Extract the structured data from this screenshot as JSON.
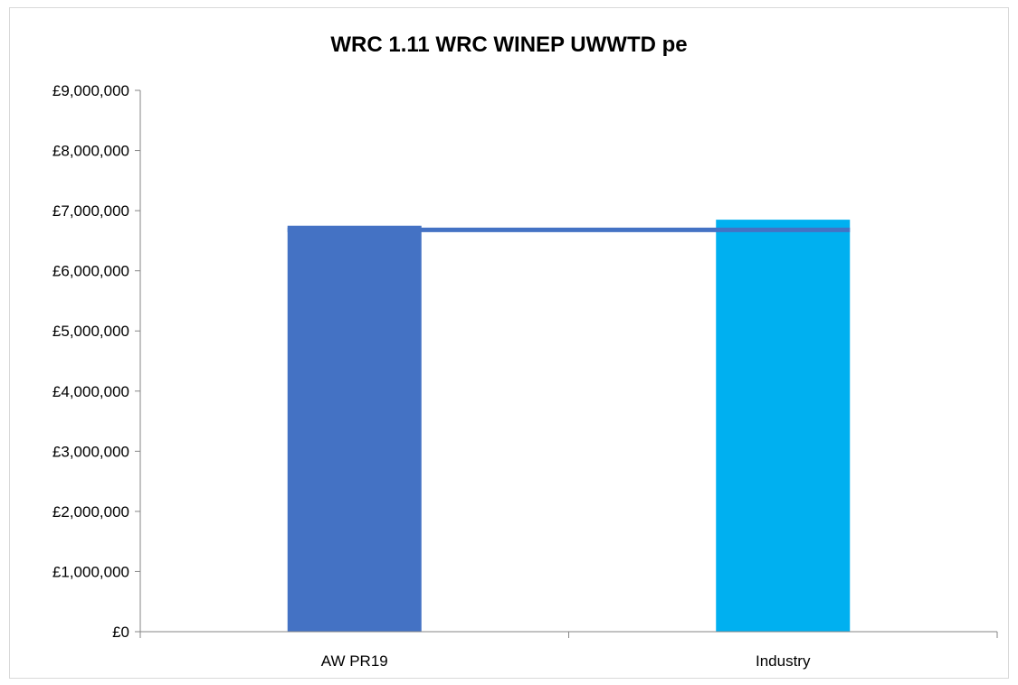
{
  "chart_data": {
    "type": "bar",
    "title": "WRC 1.11 WRC WINEP UWWTD pe",
    "categories": [
      "AW PR19",
      "Industry"
    ],
    "values": [
      6750000,
      6850000
    ],
    "bar_colors": [
      "#4472c4",
      "#00b0f0"
    ],
    "reference_line": {
      "value": 6680000,
      "color": "#4472c4"
    },
    "ylim": [
      0,
      9000000
    ],
    "y_ticks": [
      0,
      1000000,
      2000000,
      3000000,
      4000000,
      5000000,
      6000000,
      7000000,
      8000000,
      9000000
    ],
    "y_tick_labels": [
      "£0",
      "£1,000,000",
      "£2,000,000",
      "£3,000,000",
      "£4,000,000",
      "£5,000,000",
      "£6,000,000",
      "£7,000,000",
      "£8,000,000",
      "£9,000,000"
    ],
    "xlabel": "",
    "ylabel": "",
    "grid": false,
    "legend": "none"
  }
}
